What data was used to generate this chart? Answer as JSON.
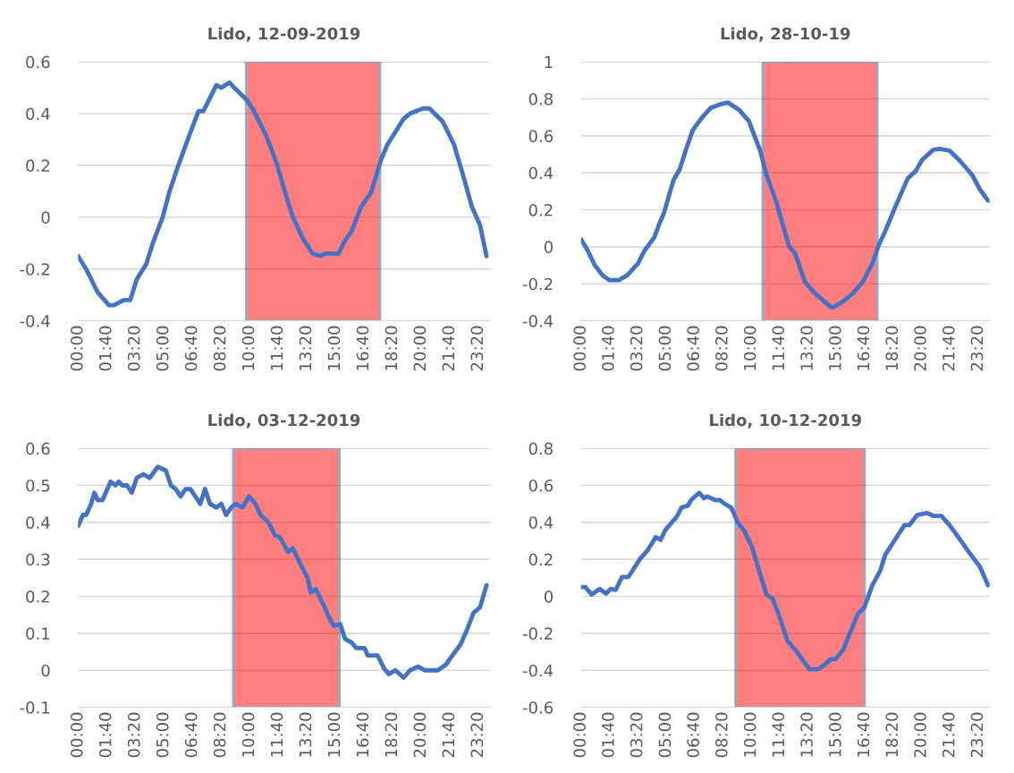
{
  "chart_data": [
    {
      "type": "line",
      "title": "Lido, 12-09-2019",
      "grid": "y",
      "xlim": [
        0,
        24
      ],
      "ylim": [
        -0.4,
        0.6
      ],
      "yticks": [
        -0.4,
        -0.2,
        0,
        0.2,
        0.4,
        0.6
      ],
      "xticks": [
        {
          "value": 0,
          "label": "00:00"
        },
        {
          "value": 1.6667,
          "label": "01:40"
        },
        {
          "value": 3.3333,
          "label": "03:20"
        },
        {
          "value": 5,
          "label": "05:00"
        },
        {
          "value": 6.6667,
          "label": "06:40"
        },
        {
          "value": 8.3333,
          "label": "08:20"
        },
        {
          "value": 10,
          "label": "10:00"
        },
        {
          "value": 11.6667,
          "label": "11:40"
        },
        {
          "value": 13.3333,
          "label": "13:20"
        },
        {
          "value": 15,
          "label": "15:00"
        },
        {
          "value": 16.6667,
          "label": "16:40"
        },
        {
          "value": 18.3333,
          "label": "18:20"
        },
        {
          "value": 20,
          "label": "20:00"
        },
        {
          "value": 21.6667,
          "label": "21:40"
        },
        {
          "value": 23.3333,
          "label": "23:20"
        }
      ],
      "bands": [
        {
          "axis": "x",
          "from": 9.8,
          "to": 17.6,
          "color": "#ff0000"
        }
      ],
      "series": [
        {
          "color": "#4472c4",
          "x": [
            0,
            0.47,
            1.14,
            1.8,
            2.09,
            2.66,
            3.04,
            3.42,
            3.98,
            4.36,
            4.93,
            5.31,
            5.79,
            6.45,
            7.02,
            7.31,
            8.06,
            8.35,
            8.82,
            9.11,
            9.87,
            10.25,
            10.63,
            11.0,
            11.57,
            12.14,
            12.52,
            13.09,
            13.66,
            14.13,
            14.42,
            15.18,
            15.56,
            15.94,
            16.5,
            17.08,
            17.65,
            18.03,
            18.98,
            19.35,
            19.73,
            20.11,
            20.49,
            21.25,
            21.92,
            22.39,
            22.96,
            23.43,
            23.81
          ],
          "values": [
            -0.15,
            -0.2,
            -0.29,
            -0.34,
            -0.34,
            -0.32,
            -0.32,
            -0.24,
            -0.18,
            -0.1,
            0.0,
            0.095,
            0.19,
            0.31,
            0.41,
            0.41,
            0.51,
            0.5,
            0.52,
            0.5,
            0.45,
            0.41,
            0.36,
            0.31,
            0.21,
            0.08,
            0.0,
            -0.08,
            -0.14,
            -0.15,
            -0.14,
            -0.14,
            -0.09,
            -0.055,
            0.04,
            0.095,
            0.22,
            0.28,
            0.38,
            0.4,
            0.41,
            0.42,
            0.42,
            0.37,
            0.28,
            0.175,
            0.04,
            -0.03,
            -0.15
          ]
        }
      ]
    },
    {
      "type": "line",
      "title": "Lido, 28-10-19",
      "grid": "y",
      "xlim": [
        0,
        24
      ],
      "ylim": [
        -0.4,
        1
      ],
      "yticks": [
        -0.4,
        -0.2,
        0,
        0.2,
        0.4,
        0.6,
        0.8,
        1
      ],
      "xticks": [
        {
          "value": 0,
          "label": "00:00"
        },
        {
          "value": 1.6667,
          "label": "01:40"
        },
        {
          "value": 3.3333,
          "label": "03:20"
        },
        {
          "value": 5,
          "label": "05:00"
        },
        {
          "value": 6.6667,
          "label": "06:40"
        },
        {
          "value": 8.3333,
          "label": "08:20"
        },
        {
          "value": 10,
          "label": "10:00"
        },
        {
          "value": 11.6667,
          "label": "11:40"
        },
        {
          "value": 13.3333,
          "label": "13:20"
        },
        {
          "value": 15,
          "label": "15:00"
        },
        {
          "value": 16.6667,
          "label": "16:40"
        },
        {
          "value": 18.3333,
          "label": "18:20"
        },
        {
          "value": 20,
          "label": "20:00"
        },
        {
          "value": 21.6667,
          "label": "21:40"
        },
        {
          "value": 23.3333,
          "label": "23:20"
        }
      ],
      "bands": [
        {
          "axis": "x",
          "from": 10.67,
          "to": 17.4,
          "color": "#ff0000"
        }
      ],
      "series": [
        {
          "color": "#4472c4",
          "x": [
            0,
            0.34,
            0.81,
            1.28,
            1.66,
            2.22,
            2.7,
            3.35,
            3.73,
            4.3,
            4.58,
            4.86,
            5.43,
            5.8,
            6.18,
            6.56,
            7.03,
            7.6,
            8.16,
            8.63,
            9.29,
            9.86,
            10.52,
            10.89,
            11.46,
            12.21,
            12.59,
            13.15,
            13.72,
            14.47,
            14.76,
            15.32,
            15.98,
            16.55,
            17.11,
            17.49,
            17.87,
            18.43,
            19.19,
            19.66,
            20.03,
            20.69,
            21.07,
            21.64,
            22.2,
            22.96,
            23.43,
            23.9
          ],
          "values": [
            0.04,
            -0.01,
            -0.1,
            -0.155,
            -0.18,
            -0.18,
            -0.155,
            -0.09,
            -0.02,
            0.05,
            0.12,
            0.18,
            0.36,
            0.42,
            0.53,
            0.63,
            0.69,
            0.75,
            0.77,
            0.78,
            0.74,
            0.68,
            0.52,
            0.39,
            0.245,
            0.005,
            -0.04,
            -0.19,
            -0.25,
            -0.31,
            -0.33,
            -0.3,
            -0.25,
            -0.19,
            -0.09,
            0.01,
            0.085,
            0.21,
            0.37,
            0.41,
            0.47,
            0.525,
            0.53,
            0.52,
            0.47,
            0.39,
            0.31,
            0.25
          ]
        }
      ]
    },
    {
      "type": "line",
      "title": "Lido, 03-12-2019",
      "grid": "y",
      "xlim": [
        0,
        24
      ],
      "ylim": [
        -0.1,
        0.6
      ],
      "yticks": [
        -0.1,
        0,
        0.1,
        0.2,
        0.3,
        0.4,
        0.5,
        0.6
      ],
      "xticks": [
        {
          "value": 0,
          "label": "00:00"
        },
        {
          "value": 1.6667,
          "label": "01:40"
        },
        {
          "value": 3.3333,
          "label": "03:20"
        },
        {
          "value": 5,
          "label": "05:00"
        },
        {
          "value": 6.6667,
          "label": "06:40"
        },
        {
          "value": 8.3333,
          "label": "08:20"
        },
        {
          "value": 10,
          "label": "10:00"
        },
        {
          "value": 11.6667,
          "label": "11:40"
        },
        {
          "value": 13.3333,
          "label": "13:20"
        },
        {
          "value": 15,
          "label": "15:00"
        },
        {
          "value": 16.6667,
          "label": "16:40"
        },
        {
          "value": 18.3333,
          "label": "18:20"
        },
        {
          "value": 20,
          "label": "20:00"
        },
        {
          "value": 21.6667,
          "label": "21:40"
        },
        {
          "value": 23.3333,
          "label": "23:20"
        }
      ],
      "bands": [
        {
          "axis": "x",
          "from": 9.05,
          "to": 15.24,
          "color": "#ff0000"
        }
      ],
      "series": [
        {
          "color": "#4472c4",
          "x": [
            0,
            0.28,
            0.47,
            0.76,
            0.95,
            1.14,
            1.42,
            1.9,
            2.18,
            2.37,
            2.56,
            2.85,
            3.13,
            3.42,
            3.8,
            4.17,
            4.65,
            5.12,
            5.41,
            5.69,
            5.98,
            6.26,
            6.55,
            7.12,
            7.4,
            7.69,
            8.06,
            8.35,
            8.63,
            8.92,
            9.2,
            9.58,
            9.96,
            10.34,
            10.63,
            11.1,
            11.48,
            11.76,
            12.24,
            12.52,
            12.99,
            13.38,
            13.57,
            13.85,
            14.33,
            14.61,
            14.9,
            15.28,
            15.56,
            15.94,
            16.22,
            16.7,
            16.89,
            17.46,
            17.84,
            18.12,
            18.5,
            18.98,
            19.35,
            19.83,
            20.21,
            20.97,
            21.44,
            21.82,
            22.3,
            22.68,
            23.05,
            23.43,
            23.81
          ],
          "values": [
            0.39,
            0.42,
            0.42,
            0.45,
            0.48,
            0.46,
            0.46,
            0.51,
            0.5,
            0.51,
            0.5,
            0.5,
            0.48,
            0.52,
            0.53,
            0.52,
            0.55,
            0.54,
            0.5,
            0.49,
            0.47,
            0.49,
            0.49,
            0.45,
            0.49,
            0.45,
            0.44,
            0.45,
            0.42,
            0.44,
            0.45,
            0.44,
            0.47,
            0.45,
            0.42,
            0.4,
            0.365,
            0.36,
            0.32,
            0.33,
            0.285,
            0.25,
            0.21,
            0.22,
            0.175,
            0.145,
            0.12,
            0.125,
            0.085,
            0.075,
            0.06,
            0.06,
            0.04,
            0.04,
            0.005,
            -0.01,
            0.0,
            -0.02,
            0.0,
            0.01,
            0.0,
            0.0,
            0.015,
            0.04,
            0.07,
            0.11,
            0.155,
            0.17,
            0.23
          ]
        }
      ]
    },
    {
      "type": "line",
      "title": "Lido, 10-12-2019",
      "grid": "y",
      "xlim": [
        0,
        24
      ],
      "ylim": [
        -0.6,
        0.8
      ],
      "yticks": [
        -0.6,
        -0.4,
        -0.2,
        0,
        0.2,
        0.4,
        0.6,
        0.8
      ],
      "xticks": [
        {
          "value": 0,
          "label": "00:00"
        },
        {
          "value": 1.6667,
          "label": "01:40"
        },
        {
          "value": 3.3333,
          "label": "03:20"
        },
        {
          "value": 5,
          "label": "05:00"
        },
        {
          "value": 6.6667,
          "label": "06:40"
        },
        {
          "value": 8.3333,
          "label": "08:20"
        },
        {
          "value": 10,
          "label": "10:00"
        },
        {
          "value": 11.6667,
          "label": "11:40"
        },
        {
          "value": 13.3333,
          "label": "13:20"
        },
        {
          "value": 15,
          "label": "15:00"
        },
        {
          "value": 16.6667,
          "label": "16:40"
        },
        {
          "value": 18.3333,
          "label": "18:20"
        },
        {
          "value": 20,
          "label": "20:00"
        },
        {
          "value": 21.6667,
          "label": "21:40"
        },
        {
          "value": 23.3333,
          "label": "23:20"
        }
      ],
      "bands": [
        {
          "axis": "x",
          "from": 9.08,
          "to": 16.66,
          "color": "#ff0000"
        }
      ],
      "series": [
        {
          "color": "#4472c4",
          "x": [
            0,
            0.25,
            0.62,
            1.09,
            1.47,
            1.75,
            2.04,
            2.41,
            2.79,
            3.45,
            3.92,
            4.39,
            4.67,
            4.96,
            5.62,
            5.9,
            6.28,
            6.46,
            6.94,
            7.22,
            7.41,
            7.88,
            8.16,
            8.44,
            8.82,
            9.2,
            9.58,
            10.05,
            10.52,
            10.89,
            11.27,
            11.65,
            12.12,
            12.59,
            13.06,
            13.44,
            13.91,
            14.38,
            14.66,
            14.95,
            15.42,
            15.79,
            16.26,
            16.64,
            17.11,
            17.58,
            17.87,
            18.43,
            19.0,
            19.28,
            19.75,
            20.32,
            20.69,
            21.16,
            21.64,
            22.2,
            22.77,
            23.43,
            23.9
          ],
          "values": [
            0.05,
            0.05,
            0.01,
            0.04,
            0.015,
            0.04,
            0.035,
            0.105,
            0.105,
            0.2,
            0.25,
            0.32,
            0.305,
            0.36,
            0.43,
            0.48,
            0.49,
            0.52,
            0.56,
            0.53,
            0.54,
            0.52,
            0.52,
            0.5,
            0.48,
            0.4,
            0.355,
            0.265,
            0.12,
            0.01,
            -0.015,
            -0.11,
            -0.24,
            -0.29,
            -0.35,
            -0.395,
            -0.395,
            -0.365,
            -0.34,
            -0.34,
            -0.285,
            -0.2,
            -0.095,
            -0.06,
            0.06,
            0.14,
            0.225,
            0.305,
            0.385,
            0.385,
            0.44,
            0.45,
            0.435,
            0.435,
            0.385,
            0.315,
            0.24,
            0.16,
            0.06
          ]
        }
      ]
    }
  ]
}
